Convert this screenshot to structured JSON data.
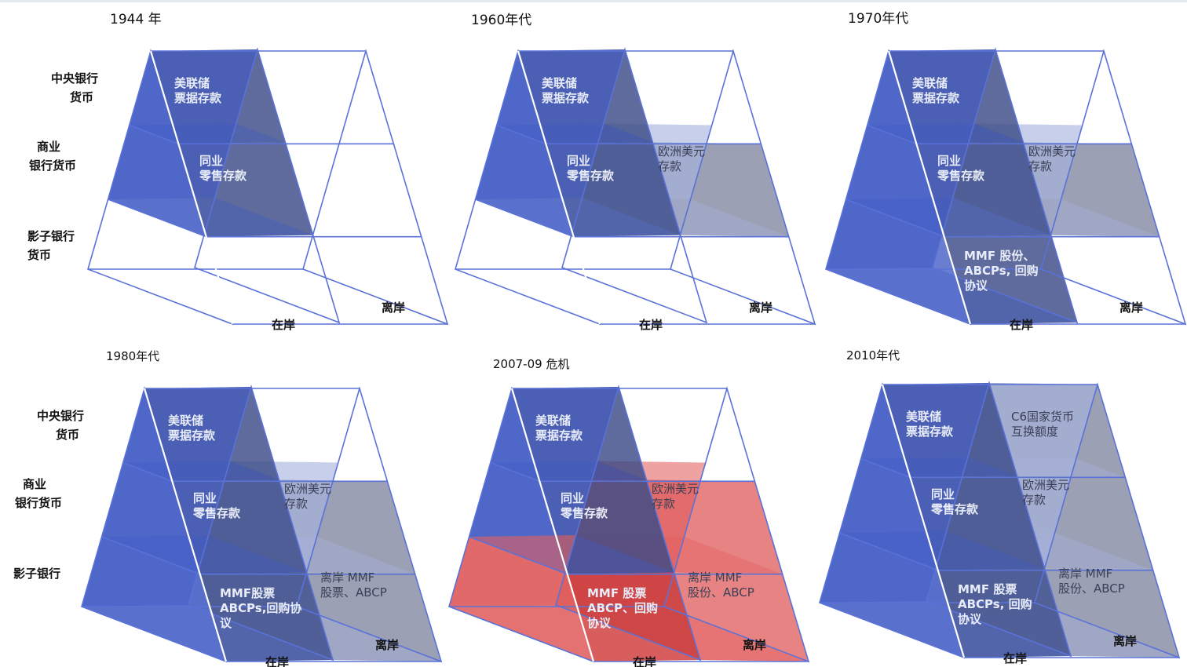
{
  "colors": {
    "wire": "#5a72d8",
    "onshore_fill": "#3f59c4",
    "onshore_top": "#3a4a86",
    "offshore_fill": "#a8b4de",
    "offshore_top": "#8a8fa8",
    "crisis_fill": "#e05a5a",
    "text_light": "#e8ecf8",
    "text_dark": "#3a3f55"
  },
  "row_labels": {
    "central_bank": [
      "中央银行",
      "货币"
    ],
    "commercial": [
      "商业",
      "银行货币"
    ],
    "shadow": [
      "影子银行",
      "货币"
    ],
    "shadow_short": [
      "影子银行"
    ]
  },
  "axis_labels": {
    "onshore": "在岸",
    "offshore": "离岸"
  },
  "panels": [
    {
      "title": "1944 年",
      "filled": {
        "on_top": true,
        "on_mid": true,
        "on_bot": false,
        "off_top": false,
        "off_mid": false,
        "off_bot": false
      },
      "crisis": false,
      "cells": {
        "on_top": [
          "美联储",
          "票据存款"
        ],
        "on_mid": [
          "同业",
          "零售存款"
        ]
      }
    },
    {
      "title": "1960年代",
      "filled": {
        "on_top": true,
        "on_mid": true,
        "on_bot": false,
        "off_top": false,
        "off_mid": true,
        "off_bot": false
      },
      "crisis": false,
      "cells": {
        "on_top": [
          "美联储",
          "票据存款"
        ],
        "on_mid": [
          "同业",
          "零售存款"
        ],
        "off_mid": [
          "欧洲美元",
          "存款"
        ]
      }
    },
    {
      "title": "1970年代",
      "filled": {
        "on_top": true,
        "on_mid": true,
        "on_bot": true,
        "off_top": false,
        "off_mid": true,
        "off_bot": false
      },
      "crisis": false,
      "cells": {
        "on_top": [
          "美联储",
          "票据存款"
        ],
        "on_mid": [
          "同业",
          "零售存款"
        ],
        "on_bot": [
          "MMF 股份、",
          "ABCPs, 回购",
          "协议"
        ],
        "off_mid": [
          "欧洲美元",
          "存款"
        ]
      }
    },
    {
      "title": "1980年代",
      "filled": {
        "on_top": true,
        "on_mid": true,
        "on_bot": true,
        "off_top": false,
        "off_mid": true,
        "off_bot": true
      },
      "crisis": false,
      "cells": {
        "on_top": [
          "美联储",
          "票据存款"
        ],
        "on_mid": [
          "同业",
          "零售存款"
        ],
        "on_bot": [
          "MMF股票",
          "ABCPs,回购协",
          "议"
        ],
        "off_mid": [
          "欧洲美元",
          "存款"
        ],
        "off_bot": [
          "离岸 MMF",
          "股票、ABCP"
        ]
      }
    },
    {
      "title": "2007-09 危机",
      "filled": {
        "on_top": true,
        "on_mid": true,
        "on_bot": true,
        "off_top": false,
        "off_mid": true,
        "off_bot": true
      },
      "crisis": true,
      "cells": {
        "on_top": [
          "美联储",
          "票据存款"
        ],
        "on_mid": [
          "同业",
          "零售存款"
        ],
        "on_bot": [
          "MMF 股票",
          "ABCP、回购",
          "协议"
        ],
        "off_mid": [
          "欧洲美元",
          "存款"
        ],
        "off_bot": [
          "离岸 MMF",
          "股份、ABCP"
        ]
      }
    },
    {
      "title": "2010年代",
      "filled": {
        "on_top": true,
        "on_mid": true,
        "on_bot": true,
        "off_top": true,
        "off_mid": true,
        "off_bot": true
      },
      "crisis": false,
      "cells": {
        "on_top": [
          "美联储",
          "票据存款"
        ],
        "on_mid": [
          "同业",
          "零售存款"
        ],
        "on_bot": [
          "MMF 股票",
          "ABCPs, 回购",
          "协议"
        ],
        "off_top": [
          "C6国家货币",
          "互换额度"
        ],
        "off_mid": [
          "欧洲美元",
          "存款"
        ],
        "off_bot": [
          "离岸 MMF",
          "股份、ABCP"
        ]
      }
    }
  ]
}
